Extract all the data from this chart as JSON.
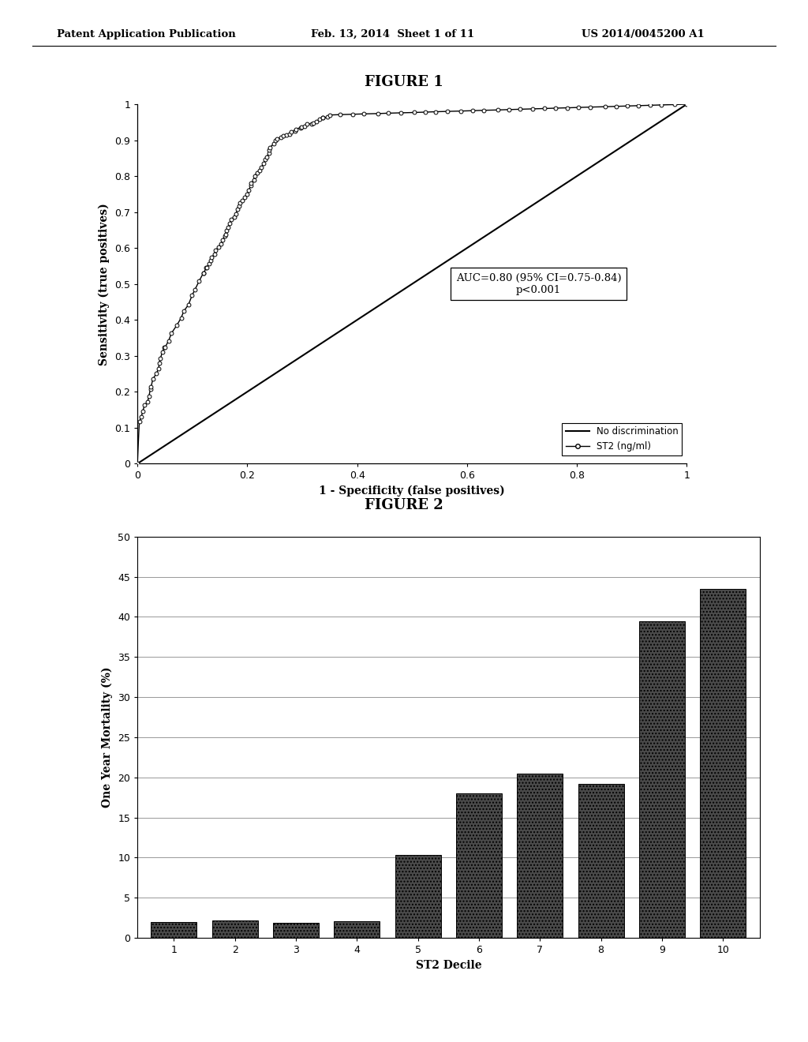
{
  "page_header_left": "Patent Application Publication",
  "page_header_center": "Feb. 13, 2014  Sheet 1 of 11",
  "page_header_right": "US 2014/0045200 A1",
  "fig1_title": "FIGURE 1",
  "fig2_title": "FIGURE 2",
  "fig1_xlabel": "1 - Specificity (false positives)",
  "fig1_ylabel": "Sensitivity (true positives)",
  "fig1_auc_text": "AUC=0.80 (95% CI=0.75-0.84)\np<0.001",
  "fig1_legend_line": "No discrimination",
  "fig1_legend_marker": "ST2 (ng/ml)",
  "fig1_xlim": [
    0,
    1
  ],
  "fig1_ylim": [
    0,
    1
  ],
  "fig1_xticks": [
    0,
    0.2,
    0.4,
    0.6,
    0.8,
    1
  ],
  "fig1_yticks": [
    0,
    0.1,
    0.2,
    0.3,
    0.4,
    0.5,
    0.6,
    0.7,
    0.8,
    0.9,
    1
  ],
  "fig2_xlabel": "ST2 Decile",
  "fig2_ylabel": "One Year Mortality (%)",
  "fig2_ylim": [
    0,
    50
  ],
  "fig2_yticks": [
    0,
    5,
    10,
    15,
    20,
    25,
    30,
    35,
    40,
    45,
    50
  ],
  "fig2_xticks": [
    1,
    2,
    3,
    4,
    5,
    6,
    7,
    8,
    9,
    10
  ],
  "fig2_categories": [
    1,
    2,
    3,
    4,
    5,
    6,
    7,
    8,
    9,
    10
  ],
  "fig2_values": [
    2.0,
    2.2,
    1.9,
    2.1,
    10.3,
    18.0,
    20.5,
    19.2,
    39.5,
    43.5
  ],
  "background_color": "#ffffff",
  "bar_color": "#4a4a4a",
  "bar_hatch": "....",
  "line_color": "#000000"
}
